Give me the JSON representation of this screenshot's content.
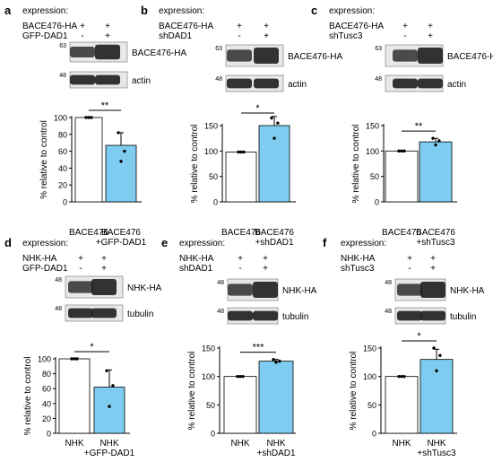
{
  "colors": {
    "control_bar": "#ffffff",
    "treated_bar": "#7ecdf0",
    "bar_edge": "#000000",
    "blot_bg": "#e8e8e8",
    "band": "#1e1e1e"
  },
  "chart_data": [
    {
      "panel": "a",
      "type": "bar",
      "expression_label": "expression:",
      "conditions": [
        {
          "label": "BACE476-HA",
          "marks": [
            "+",
            "+"
          ]
        },
        {
          "label": "GFP-DAD1",
          "marks": [
            "-",
            "+"
          ]
        }
      ],
      "blots": [
        {
          "label": "BACE476-HA",
          "marker": "63"
        },
        {
          "label": "actin",
          "marker": "48"
        }
      ],
      "ylabel": "% relative to control",
      "ylim": [
        0,
        100
      ],
      "yticks": [
        0,
        20,
        40,
        60,
        80,
        100
      ],
      "categories": [
        [
          "BACE476"
        ],
        [
          "BACE476",
          "+GFP-DAD1"
        ]
      ],
      "values": [
        100,
        67
      ],
      "errors": [
        0,
        15
      ],
      "points": [
        [
          100,
          100,
          100
        ],
        [
          82,
          60,
          48
        ]
      ],
      "significance": "**"
    },
    {
      "panel": "b",
      "type": "bar",
      "expression_label": "expression:",
      "conditions": [
        {
          "label": "BACE476-HA",
          "marks": [
            "+",
            "+"
          ]
        },
        {
          "label": "shDAD1",
          "marks": [
            "-",
            "+"
          ]
        }
      ],
      "blots": [
        {
          "label": "BACE476-HA",
          "marker": "63"
        },
        {
          "label": "actin",
          "marker": "48"
        }
      ],
      "ylabel": "% relative to control",
      "ylim": [
        0,
        150
      ],
      "yticks": [
        0,
        50,
        100,
        150
      ],
      "categories": [
        [
          "BACE476"
        ],
        [
          "BACE476",
          "+shDAD1"
        ]
      ],
      "values": [
        98,
        150
      ],
      "errors": [
        0,
        18
      ],
      "points": [
        [
          98,
          98,
          98
        ],
        [
          165,
          155,
          125
        ]
      ],
      "significance": "*"
    },
    {
      "panel": "c",
      "type": "bar",
      "expression_label": "expression:",
      "conditions": [
        {
          "label": "BACE476-HA",
          "marks": [
            "+",
            "+"
          ]
        },
        {
          "label": "shTusc3",
          "marks": [
            "-",
            "+"
          ]
        }
      ],
      "blots": [
        {
          "label": "BACE476-HA",
          "marker": "63"
        },
        {
          "label": "actin",
          "marker": "48"
        }
      ],
      "ylabel": "% relative to control",
      "ylim": [
        0,
        150
      ],
      "yticks": [
        0,
        50,
        100,
        150
      ],
      "categories": [
        [
          "BACE476"
        ],
        [
          "BACE476",
          "+shTusc3"
        ]
      ],
      "values": [
        100,
        118
      ],
      "errors": [
        0,
        7
      ],
      "points": [
        [
          100,
          100,
          100
        ],
        [
          125,
          120,
          112
        ]
      ],
      "significance": "**"
    },
    {
      "panel": "d",
      "type": "bar",
      "expression_label": "expression:",
      "conditions": [
        {
          "label": "NHK-HA",
          "marks": [
            "+",
            "+"
          ]
        },
        {
          "label": "GFP-DAD1",
          "marks": [
            "-",
            "+"
          ]
        }
      ],
      "blots": [
        {
          "label": "NHK-HA",
          "marker": "48"
        },
        {
          "label": "tubulin",
          "marker": "48"
        }
      ],
      "ylabel": "% relative to control",
      "ylim": [
        0,
        100
      ],
      "yticks": [
        0,
        20,
        40,
        60,
        80,
        100
      ],
      "categories": [
        [
          "NHK"
        ],
        [
          "NHK",
          "+GFP-DAD1"
        ]
      ],
      "values": [
        100,
        62
      ],
      "errors": [
        0,
        23
      ],
      "points": [
        [
          100,
          100,
          100
        ],
        [
          84,
          64,
          36
        ]
      ],
      "significance": "*"
    },
    {
      "panel": "e",
      "type": "bar",
      "expression_label": "expression:",
      "conditions": [
        {
          "label": "NHK-HA",
          "marks": [
            "+",
            "+"
          ]
        },
        {
          "label": "shDAD1",
          "marks": [
            "-",
            "+"
          ]
        }
      ],
      "blots": [
        {
          "label": "NHK-HA",
          "marker": "48"
        },
        {
          "label": "tubulin",
          "marker": "48"
        }
      ],
      "ylabel": "% relative to control",
      "ylim": [
        0,
        150
      ],
      "yticks": [
        0,
        50,
        100,
        150
      ],
      "categories": [
        [
          "NHK"
        ],
        [
          "NHK",
          "+shDAD1"
        ]
      ],
      "values": [
        100,
        127
      ],
      "errors": [
        0,
        3
      ],
      "points": [
        [
          100,
          100,
          100
        ],
        [
          130,
          127,
          125
        ]
      ],
      "significance": "***"
    },
    {
      "panel": "f",
      "type": "bar",
      "expression_label": "expression:",
      "conditions": [
        {
          "label": "NHK-HA",
          "marks": [
            "+",
            "+"
          ]
        },
        {
          "label": "shTusc3",
          "marks": [
            "-",
            "+"
          ]
        }
      ],
      "blots": [
        {
          "label": "NHK-HA",
          "marker": "48"
        },
        {
          "label": "tubulin",
          "marker": "48"
        }
      ],
      "ylabel": "% relative to control",
      "ylim": [
        0,
        150
      ],
      "yticks": [
        0,
        50,
        100,
        150
      ],
      "categories": [
        [
          "NHK"
        ],
        [
          "NHK",
          "+shTusc3"
        ]
      ],
      "values": [
        100,
        130
      ],
      "errors": [
        0,
        18
      ],
      "points": [
        [
          100,
          100,
          100
        ],
        [
          150,
          137,
          110
        ]
      ],
      "significance": "*"
    }
  ]
}
